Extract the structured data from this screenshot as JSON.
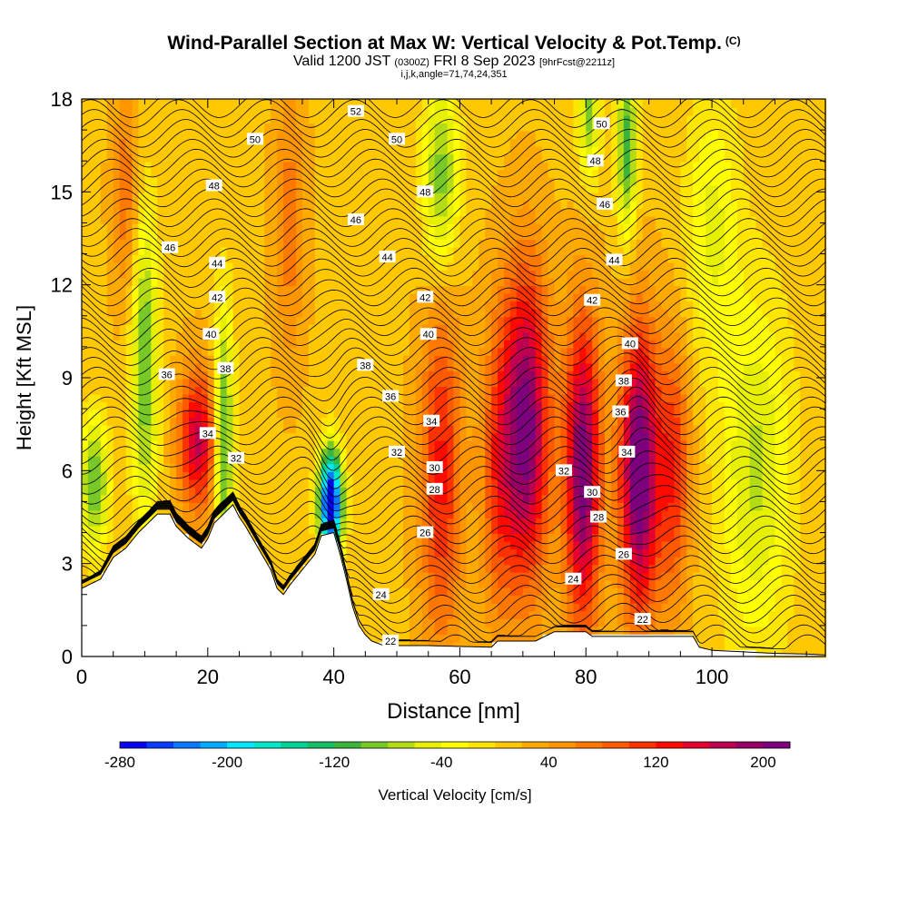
{
  "header": {
    "title": "Wind-Parallel Section at Max W: Vertical Velocity & Pot.Temp.",
    "copyright": "(C)",
    "valid_prefix": "Valid 1200 JST",
    "valid_utc": "(0300Z)",
    "valid_date": "FRI 8 Sep 2023",
    "forecast": "[9hrFcst@2211z]",
    "section_params": "i,j,k,angle=71,74,24,351"
  },
  "chart_data": {
    "type": "heatmap",
    "xlabel": "Distance [nm]",
    "ylabel": "Height [Kft MSL]",
    "xlim": [
      0,
      118
    ],
    "ylim": [
      0,
      18
    ],
    "x_ticks": [
      "0",
      "20",
      "40",
      "60",
      "80",
      "100"
    ],
    "y_ticks": [
      "0",
      "3",
      "6",
      "9",
      "12",
      "15",
      "18"
    ],
    "colorbar": {
      "label": "Vertical Velocity [cm/s]",
      "tick_labels": [
        "-280",
        "-200",
        "-120",
        "-40",
        "40",
        "120",
        "200"
      ],
      "range": [
        -280,
        220
      ],
      "step": 20,
      "colors": [
        "#0a00f0",
        "#0a3cff",
        "#0a78ff",
        "#00aaff",
        "#00e6ff",
        "#00e6c8",
        "#00d296",
        "#14be64",
        "#3cb43c",
        "#78c828",
        "#b4dc14",
        "#e6f000",
        "#ffff00",
        "#ffe600",
        "#ffc800",
        "#ffaa00",
        "#ff9600",
        "#ff7800",
        "#ff5a00",
        "#ff3200",
        "#ff0a00",
        "#e6002d",
        "#be0050",
        "#960064",
        "#7d007d"
      ]
    },
    "theta_contours": {
      "interval": 1,
      "label_points": [
        {
          "x": 43.5,
          "y": 17.6,
          "label": "52"
        },
        {
          "x": 27.5,
          "y": 16.7,
          "label": "50"
        },
        {
          "x": 50,
          "y": 16.7,
          "label": "50"
        },
        {
          "x": 82.5,
          "y": 17.2,
          "label": "50"
        },
        {
          "x": 21,
          "y": 15.2,
          "label": "48"
        },
        {
          "x": 54.5,
          "y": 15.0,
          "label": "48"
        },
        {
          "x": 81.5,
          "y": 16.0,
          "label": "48"
        },
        {
          "x": 43.5,
          "y": 14.1,
          "label": "46"
        },
        {
          "x": 14,
          "y": 13.2,
          "label": "46"
        },
        {
          "x": 83,
          "y": 14.6,
          "label": "46"
        },
        {
          "x": 21.5,
          "y": 12.7,
          "label": "44"
        },
        {
          "x": 48.5,
          "y": 12.9,
          "label": "44"
        },
        {
          "x": 84.5,
          "y": 12.8,
          "label": "44"
        },
        {
          "x": 21.5,
          "y": 11.6,
          "label": "42"
        },
        {
          "x": 54.5,
          "y": 11.6,
          "label": "42"
        },
        {
          "x": 81,
          "y": 11.5,
          "label": "42"
        },
        {
          "x": 20.5,
          "y": 10.4,
          "label": "40"
        },
        {
          "x": 55,
          "y": 10.4,
          "label": "40"
        },
        {
          "x": 87,
          "y": 10.1,
          "label": "40"
        },
        {
          "x": 13.5,
          "y": 9.1,
          "label": "36"
        },
        {
          "x": 22.8,
          "y": 9.3,
          "label": "38"
        },
        {
          "x": 45,
          "y": 9.4,
          "label": "38"
        },
        {
          "x": 86,
          "y": 8.9,
          "label": "38"
        },
        {
          "x": 49,
          "y": 8.4,
          "label": "36"
        },
        {
          "x": 85.5,
          "y": 7.9,
          "label": "36"
        },
        {
          "x": 20,
          "y": 7.2,
          "label": "34"
        },
        {
          "x": 55.5,
          "y": 7.6,
          "label": "34"
        },
        {
          "x": 86.5,
          "y": 6.6,
          "label": "34"
        },
        {
          "x": 24.5,
          "y": 6.4,
          "label": "32"
        },
        {
          "x": 50,
          "y": 6.6,
          "label": "32"
        },
        {
          "x": 76.5,
          "y": 6.0,
          "label": "32"
        },
        {
          "x": 56,
          "y": 6.1,
          "label": "30"
        },
        {
          "x": 81,
          "y": 5.3,
          "label": "30"
        },
        {
          "x": 56,
          "y": 5.4,
          "label": "28"
        },
        {
          "x": 82,
          "y": 4.5,
          "label": "28"
        },
        {
          "x": 54.5,
          "y": 4.0,
          "label": "26"
        },
        {
          "x": 86,
          "y": 3.3,
          "label": "26"
        },
        {
          "x": 47.5,
          "y": 2.0,
          "label": "24"
        },
        {
          "x": 78,
          "y": 2.5,
          "label": "24"
        },
        {
          "x": 49,
          "y": 0.5,
          "label": "22"
        },
        {
          "x": 89,
          "y": 1.2,
          "label": "22"
        }
      ]
    }
  }
}
